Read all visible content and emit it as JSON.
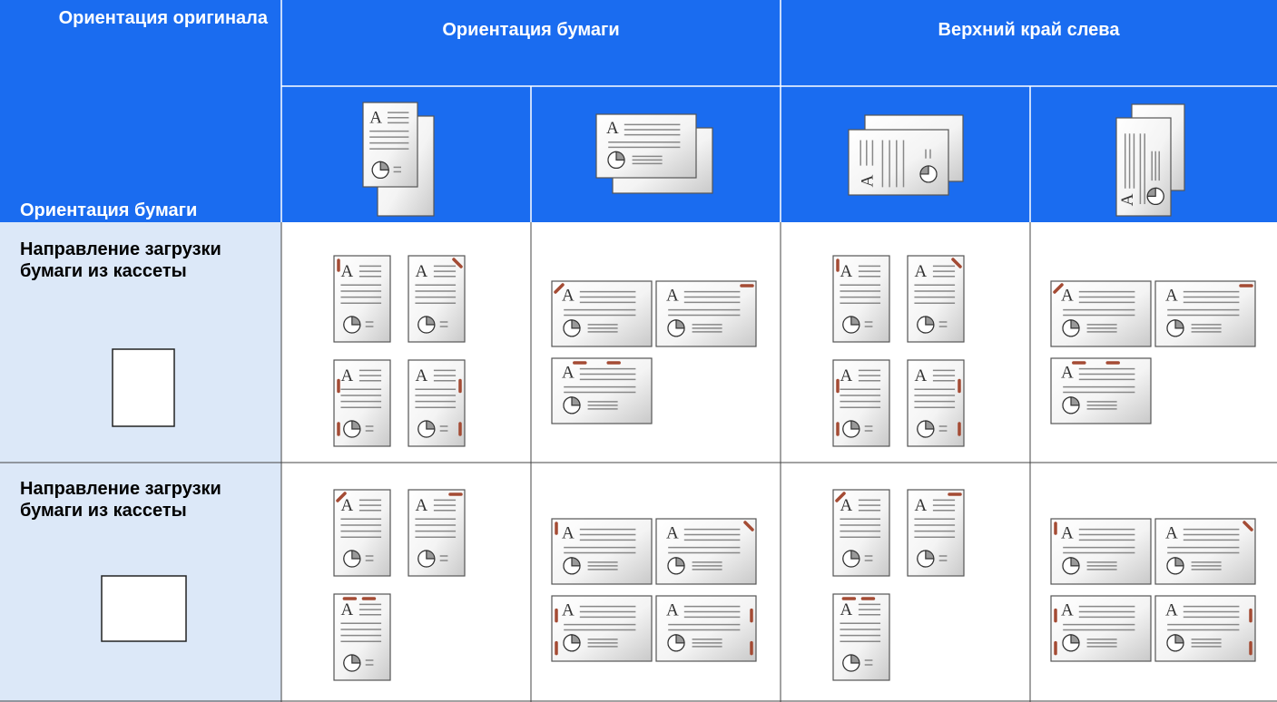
{
  "header": {
    "corner_top": "Ориентация оригинала",
    "group_1": "Ориентация бумаги",
    "group_2": "Верхний край слева",
    "corner_bottom": "Ориентация бумаги"
  },
  "rows": [
    {
      "label": "Направление загрузки бумаги из кассеты"
    },
    {
      "label": "Направление загрузки бумаги из кассеты"
    }
  ]
}
